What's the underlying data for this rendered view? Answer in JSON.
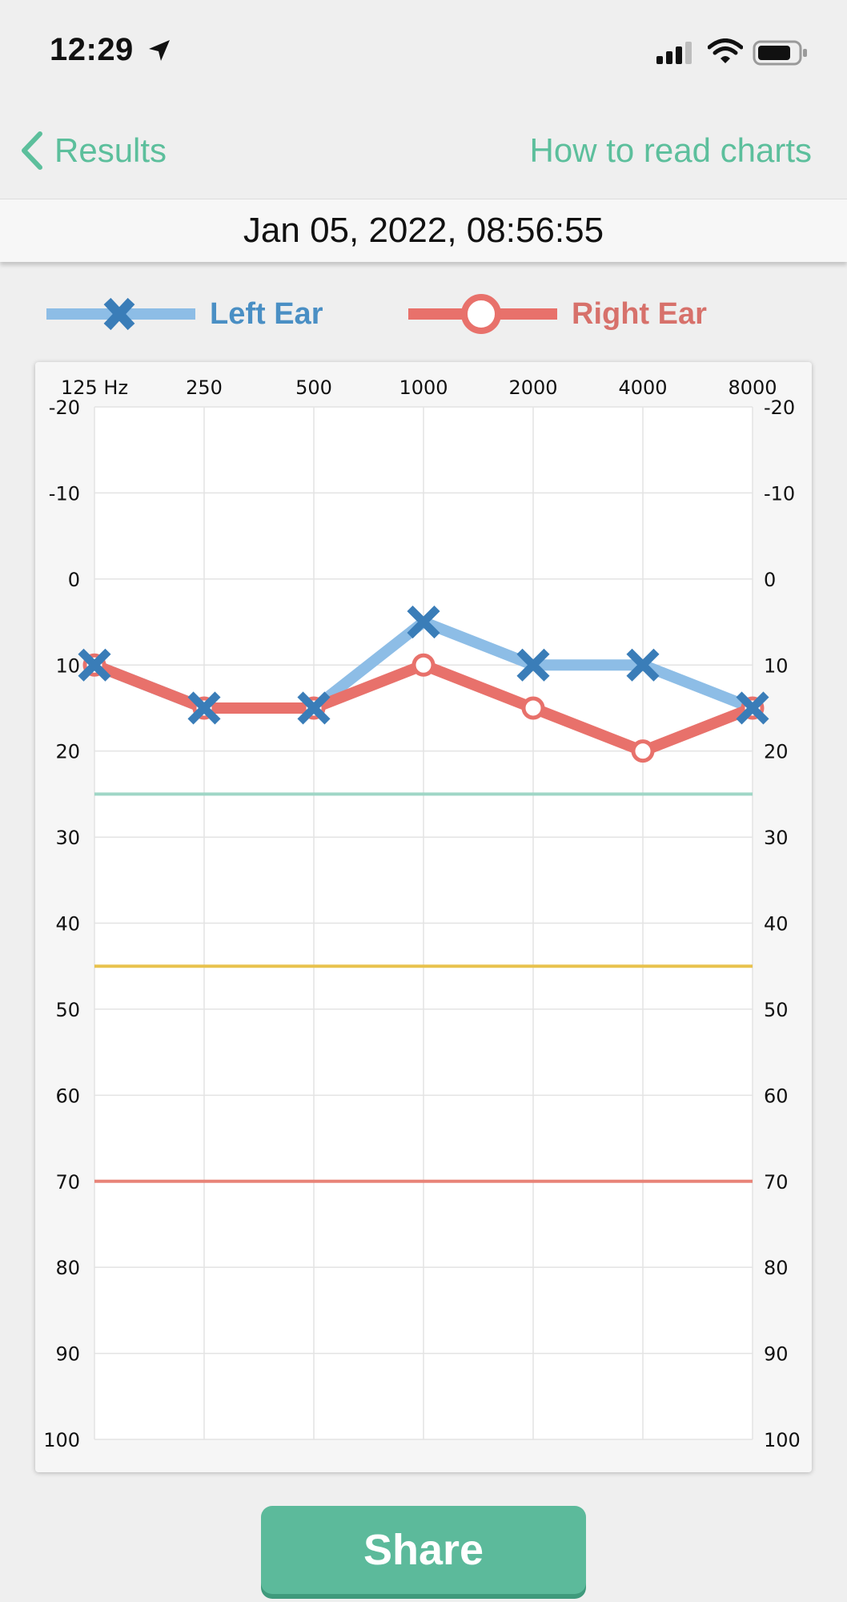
{
  "status_bar": {
    "time": "12:29"
  },
  "nav": {
    "back_label": "Results",
    "help_link": "How to read charts"
  },
  "date_bar": {
    "text": "Jan 05, 2022, 08:56:55"
  },
  "legend": {
    "left_label": "Left Ear",
    "right_label": "Right Ear"
  },
  "colors": {
    "accent": "#5cbf9c",
    "left_ear_line": "#8dbde6",
    "left_ear_marker": "#3a7db8",
    "right_ear": "#e8716b",
    "threshold_mild": "#9fd6c6",
    "threshold_moderate": "#e8c24d",
    "threshold_severe": "#e88478"
  },
  "chart_data": {
    "type": "line",
    "x_ticks": [
      "125 Hz",
      "250",
      "500",
      "1000",
      "2000",
      "4000",
      "8000"
    ],
    "y_ticks": [
      "-20",
      "-10",
      "0",
      "10",
      "20",
      "30",
      "40",
      "50",
      "60",
      "70",
      "80",
      "90",
      "100"
    ],
    "ylim": [
      -20,
      100
    ],
    "y_inverted": true,
    "grid": true,
    "legend_position": "top",
    "series": [
      {
        "name": "Left Ear",
        "marker": "x",
        "values": [
          10,
          15,
          15,
          5,
          10,
          10,
          15
        ]
      },
      {
        "name": "Right Ear",
        "marker": "circle",
        "values": [
          10,
          15,
          15,
          10,
          15,
          20,
          15
        ]
      }
    ],
    "reference_lines": [
      25,
      45,
      70
    ]
  },
  "actions": {
    "share_label": "Share"
  }
}
